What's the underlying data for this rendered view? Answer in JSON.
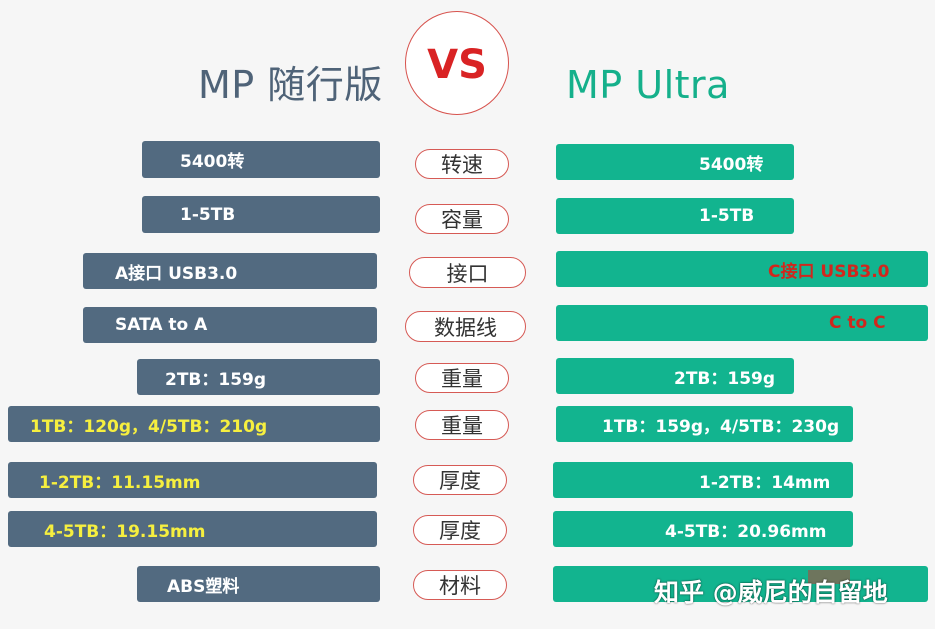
{
  "titles": {
    "left": "MP 随行版",
    "vs": "VS",
    "right": "MP Ultra"
  },
  "rows": [
    {
      "left": "5400转",
      "label": "转速",
      "right": "5400转"
    },
    {
      "left": "1-5TB",
      "label": "容量",
      "right": "1-5TB"
    },
    {
      "left": "A接口 USB3.0",
      "label": "接口",
      "right": "C接口 USB3.0"
    },
    {
      "left": "SATA to A",
      "label": "数据线",
      "right": "C to C"
    },
    {
      "left": "2TB：159g",
      "label": "重量",
      "right": "2TB：159g"
    },
    {
      "left": "1TB：120g，4/5TB：210g",
      "label": "重量",
      "right": "1TB：159g，4/5TB：230g"
    },
    {
      "left": "1-2TB：11.15mm",
      "label": "厚度",
      "right": "1-2TB：14mm"
    },
    {
      "left": "4-5TB：19.15mm",
      "label": "厚度",
      "right": "4-5TB：20.96mm"
    },
    {
      "left": "ABS塑料",
      "label": "材料",
      "right": ""
    }
  ],
  "watermark": "知乎 @威尼的自留地",
  "colors": {
    "left_box": "#526a80",
    "right_box": "#12b48f",
    "left_title": "#4f6378",
    "right_title": "#15b08b",
    "vs_red": "#d92324",
    "highlight_yellow": "#f6ef3f",
    "highlight_red": "#d1271d"
  }
}
